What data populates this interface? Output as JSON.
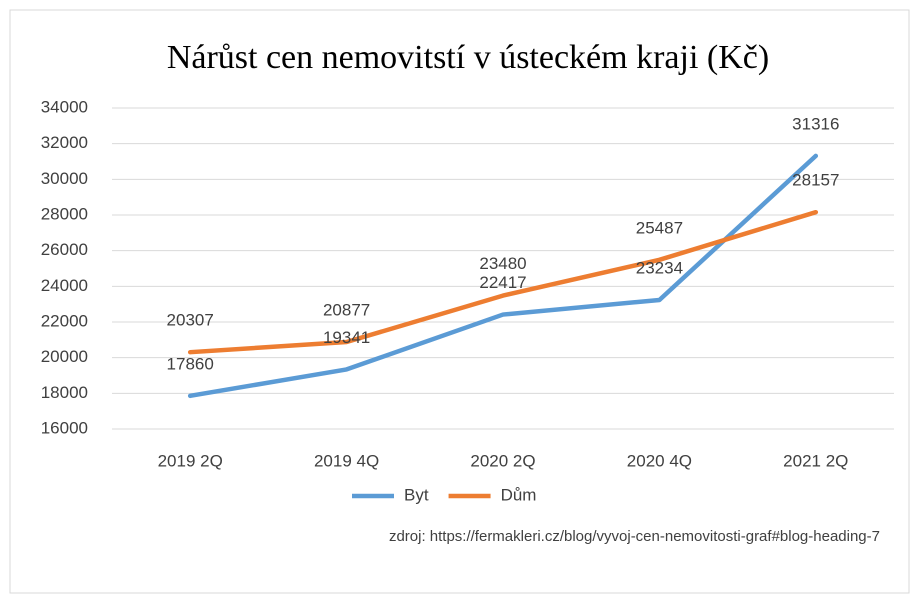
{
  "chart_data": {
    "type": "line",
    "title": "Nárůst cen nemovitstí v ústeckém kraji (Kč)",
    "categories": [
      "2019 2Q",
      "2019 4Q",
      "2020 2Q",
      "2020 4Q",
      "2021 2Q"
    ],
    "series": [
      {
        "name": "Byt",
        "color": "#5b9bd5",
        "values": [
          17860,
          19341,
          22417,
          23234,
          31316
        ]
      },
      {
        "name": "Dům",
        "color": "#ed7d31",
        "values": [
          20307,
          20877,
          23480,
          25487,
          28157
        ]
      }
    ],
    "ylim": [
      16000,
      34000
    ],
    "yticks": [
      16000,
      18000,
      20000,
      22000,
      24000,
      26000,
      28000,
      30000,
      32000,
      34000
    ],
    "grid": true,
    "legend": "bottom",
    "note": "zdroj: https://fermakleri.cz/blog/vyvoj-cen-nemovitosti-graf#blog-heading-7"
  }
}
